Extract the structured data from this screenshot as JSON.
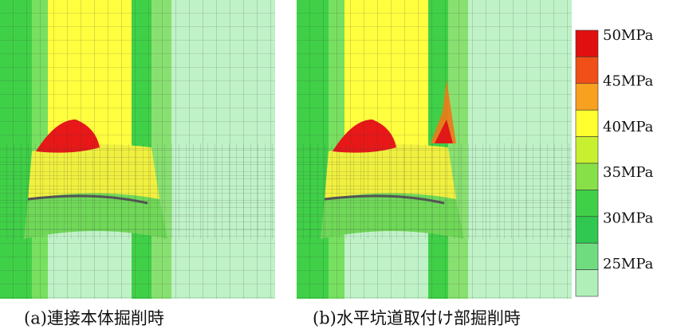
{
  "panels": [
    {
      "caption": "(a)連接本体掘削時"
    },
    {
      "caption": "(b)水平坑道取付け部掘削時"
    }
  ],
  "legend": {
    "labels": [
      "50MPa",
      "45MPa",
      "40MPa",
      "35MPa",
      "30MPa",
      "25MPa"
    ],
    "colors": [
      "#e01010",
      "#f05018",
      "#f8a020",
      "#ffff30",
      "#c8f030",
      "#88e048",
      "#40d048",
      "#30c850",
      "#70dc80",
      "#b0f0b8"
    ]
  }
}
